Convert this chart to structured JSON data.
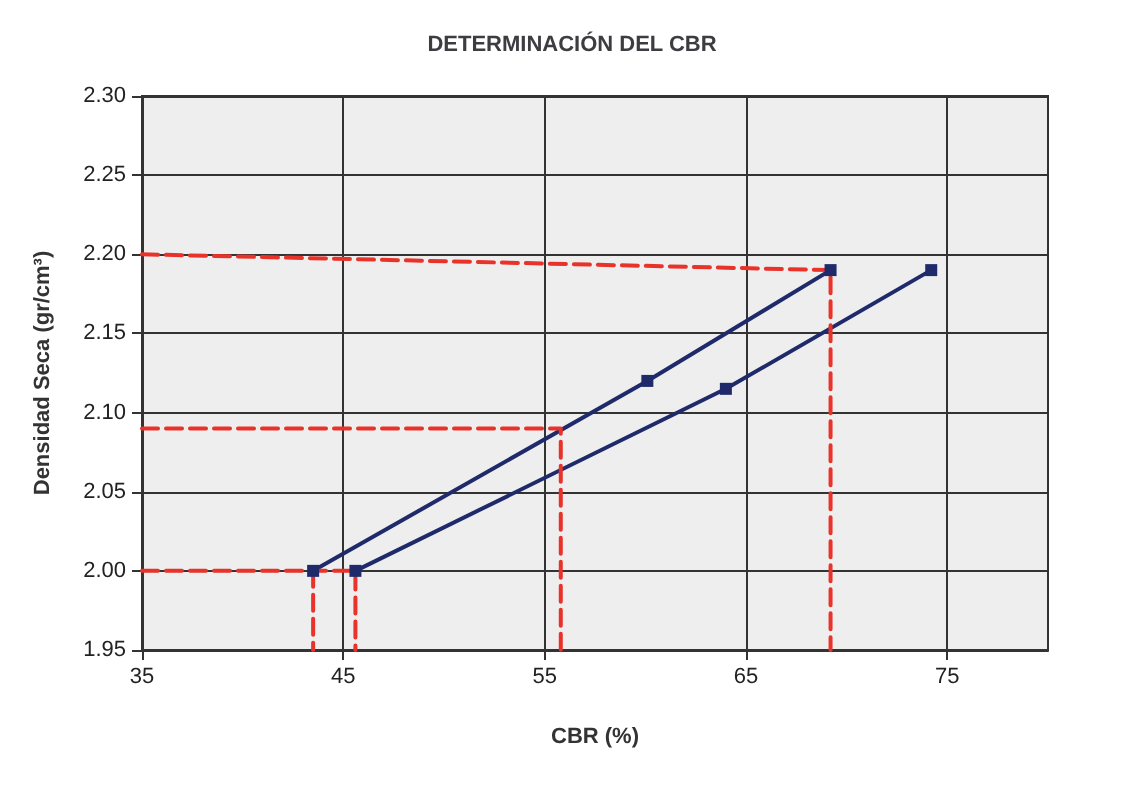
{
  "chart_data": {
    "type": "line",
    "title": "DETERMINACIÓN DEL CBR",
    "xlabel": "CBR (%)",
    "ylabel": "Densidad Seca (gr/cm³)",
    "xlim": [
      35,
      80
    ],
    "xticks": [
      35,
      45,
      55,
      65,
      75
    ],
    "ylim": [
      1.95,
      2.3
    ],
    "yticks": [
      1.95,
      {
        "value": 2.0,
        "label": "2.00"
      },
      2.05,
      {
        "value": 2.1,
        "label": "2.10"
      },
      2.15,
      {
        "value": 2.2,
        "label": "2.20"
      },
      2.25,
      {
        "value": 2.3,
        "label": "2.30"
      }
    ],
    "grid": true,
    "marker": "square",
    "line_style": "solid",
    "series": [
      {
        "color": "#1f2a6b",
        "x": [
          43.5,
          60.1,
          69.2
        ],
        "values": [
          2.0,
          2.12,
          2.19
        ]
      },
      {
        "color": "#1f2a6b",
        "x": [
          45.6,
          64,
          74.2
        ],
        "values": [
          2.0,
          2.115,
          2.19
        ]
      },
      {
        "color": "#e8322a",
        "marker": "none",
        "line_style": "dashed",
        "x": [
          35,
          45.6,
          45.6
        ],
        "values": [
          2.0,
          2.0,
          1.95
        ]
      },
      {
        "color": "#e8322a",
        "marker": "none",
        "line_style": "dashed",
        "x": [
          43.5,
          43.5
        ],
        "values": [
          2.0,
          1.95
        ]
      },
      {
        "color": "#e8322a",
        "marker": "none",
        "line_style": "dashed",
        "x": [
          35,
          55.8,
          55.8
        ],
        "values": [
          2.09,
          2.09,
          1.95
        ]
      },
      {
        "color": "#e8322a",
        "marker": "none",
        "line_style": "dashed",
        "x": [
          35,
          69.2,
          69.2
        ],
        "values": [
          2.2,
          2.19,
          1.95
        ]
      }
    ]
  }
}
